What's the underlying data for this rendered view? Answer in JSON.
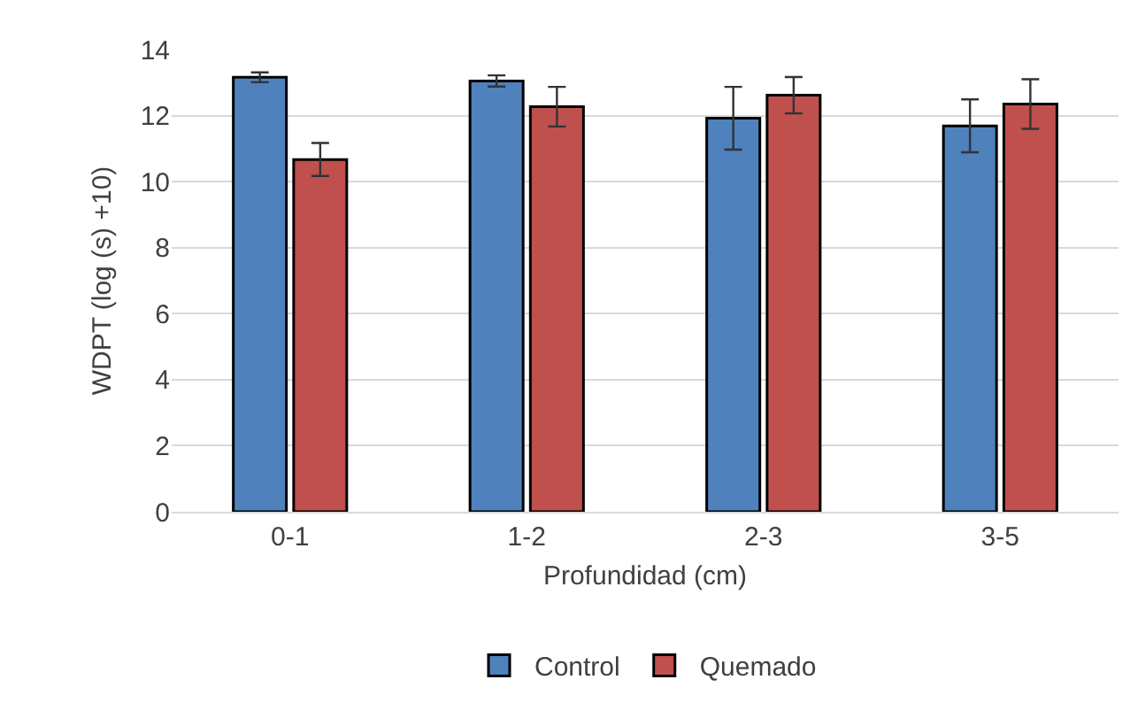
{
  "chart_data": {
    "type": "bar",
    "xlabel": "Profundidad (cm)",
    "ylabel": "WDPT (log (s) +10)",
    "categories": [
      "0-1",
      "1-2",
      "2-3",
      "3-5"
    ],
    "series": [
      {
        "name": "Control",
        "color": "#4f81bd",
        "values": [
          13.16,
          13.05,
          11.92,
          11.69
        ],
        "errors": [
          0.15,
          0.17,
          0.95,
          0.8
        ]
      },
      {
        "name": "Quemado",
        "color": "#c0504d",
        "values": [
          10.67,
          12.27,
          12.62,
          12.35
        ],
        "errors": [
          0.5,
          0.6,
          0.55,
          0.75
        ]
      }
    ],
    "ylim": [
      0,
      14
    ],
    "yticks": [
      0,
      2,
      4,
      6,
      8,
      10,
      12,
      14
    ],
    "grid": "y",
    "legend": "bottom"
  }
}
